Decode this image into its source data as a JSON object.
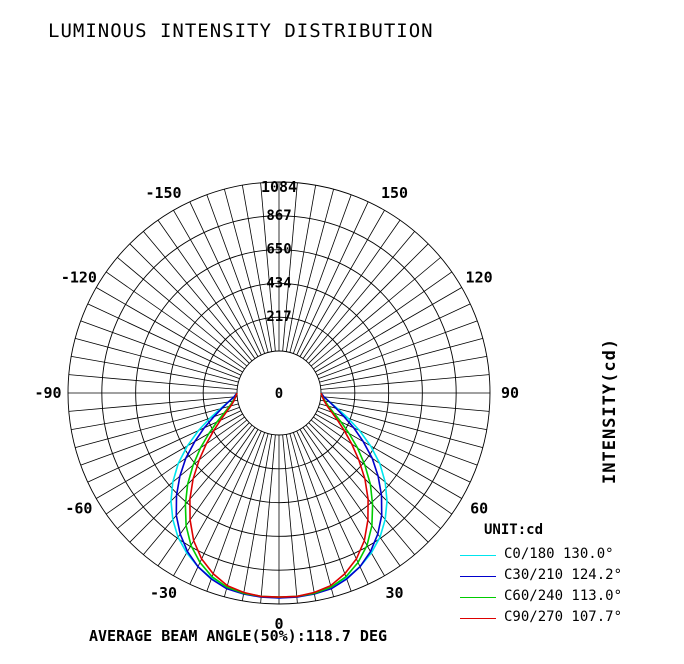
{
  "title": "LUMINOUS INTENSITY DISTRIBUTION",
  "footer": "AVERAGE BEAM ANGLE(50%):118.7 DEG",
  "chart_data": {
    "type": "polar",
    "title": "LUMINOUS INTENSITY DISTRIBUTION",
    "ylabel": "INTENSITY(cd)",
    "unit_label": "UNIT:cd",
    "radial_ticks": [
      "0",
      "217",
      "434",
      "650",
      "867",
      "1084"
    ],
    "radial_tick_values": [
      0,
      217,
      434,
      650,
      867,
      1084
    ],
    "rmax": 1084,
    "angle_ticks": [
      {
        "deg": 0,
        "label": "0"
      },
      {
        "deg": 30,
        "label": "30"
      },
      {
        "deg": 60,
        "label": "60"
      },
      {
        "deg": 90,
        "label": "90"
      },
      {
        "deg": 120,
        "label": "120"
      },
      {
        "deg": 150,
        "label": "150"
      },
      {
        "deg": -30,
        "label": "-30"
      },
      {
        "deg": -60,
        "label": "-60"
      },
      {
        "deg": -90,
        "label": "-90"
      },
      {
        "deg": -120,
        "label": "-120"
      },
      {
        "deg": -150,
        "label": "-150"
      },
      {
        "deg": 180,
        "label": "1084"
      }
    ],
    "grid_angle_step_deg": 5,
    "series": [
      {
        "name": "C0/180 130.0°",
        "color": "#00e5ee",
        "angles": [
          -90,
          -85,
          -80,
          -75,
          -70,
          -65,
          -60,
          -55,
          -50,
          -45,
          -40,
          -35,
          -30,
          -25,
          -20,
          -15,
          -10,
          -5,
          0,
          5,
          10,
          15,
          20,
          25,
          30,
          35,
          40,
          45,
          50,
          55,
          60,
          65,
          70,
          75,
          80,
          85,
          90
        ],
        "values": [
          0,
          20,
          60,
          120,
          200,
          300,
          410,
          520,
          620,
          710,
          790,
          860,
          915,
          960,
          995,
          1020,
          1035,
          1040,
          1045,
          1040,
          1035,
          1020,
          995,
          960,
          915,
          860,
          790,
          710,
          620,
          520,
          410,
          300,
          200,
          120,
          60,
          20,
          0
        ]
      },
      {
        "name": "C30/210 124.2°",
        "color": "#0000cc",
        "angles": [
          -90,
          -85,
          -80,
          -75,
          -70,
          -65,
          -60,
          -55,
          -50,
          -45,
          -40,
          -35,
          -30,
          -25,
          -20,
          -15,
          -10,
          -5,
          0,
          5,
          10,
          15,
          20,
          25,
          30,
          35,
          40,
          45,
          50,
          55,
          60,
          65,
          70,
          75,
          80,
          85,
          90
        ],
        "values": [
          0,
          20,
          60,
          110,
          175,
          260,
          355,
          460,
          560,
          660,
          755,
          835,
          905,
          960,
          1000,
          1030,
          1040,
          1045,
          1045,
          1045,
          1040,
          1030,
          1000,
          960,
          905,
          835,
          755,
          660,
          560,
          460,
          355,
          260,
          175,
          110,
          60,
          20,
          0
        ]
      },
      {
        "name": "C60/240 113.0°",
        "color": "#00cc00",
        "angles": [
          -90,
          -85,
          -80,
          -75,
          -70,
          -65,
          -60,
          -55,
          -50,
          -45,
          -40,
          -35,
          -30,
          -25,
          -20,
          -15,
          -10,
          -5,
          0,
          5,
          10,
          15,
          20,
          25,
          30,
          35,
          40,
          45,
          50,
          55,
          60,
          65,
          70,
          75,
          80,
          85,
          90
        ],
        "values": [
          0,
          10,
          30,
          60,
          105,
          170,
          250,
          345,
          450,
          560,
          665,
          770,
          860,
          930,
          985,
          1020,
          1035,
          1040,
          1040,
          1040,
          1035,
          1020,
          985,
          930,
          860,
          770,
          665,
          560,
          450,
          345,
          250,
          170,
          105,
          60,
          30,
          10,
          0
        ]
      },
      {
        "name": "C90/270 107.7°",
        "color": "#dd0000",
        "angles": [
          -90,
          -85,
          -80,
          -75,
          -70,
          -65,
          -60,
          -55,
          -50,
          -45,
          -40,
          -35,
          -30,
          -25,
          -20,
          -15,
          -10,
          -5,
          0,
          5,
          10,
          15,
          20,
          25,
          30,
          35,
          40,
          45,
          50,
          55,
          60,
          65,
          70,
          75,
          80,
          85,
          90
        ],
        "values": [
          0,
          10,
          25,
          50,
          90,
          145,
          215,
          300,
          400,
          510,
          620,
          725,
          825,
          905,
          965,
          1010,
          1030,
          1040,
          1040,
          1040,
          1030,
          1010,
          965,
          905,
          825,
          725,
          620,
          510,
          400,
          300,
          215,
          145,
          90,
          50,
          25,
          10,
          0
        ]
      }
    ],
    "legend_position": "bottom-right"
  }
}
